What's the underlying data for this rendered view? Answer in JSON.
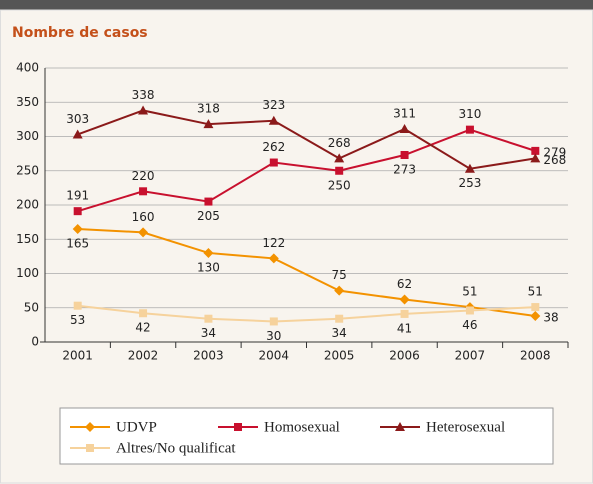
{
  "chart_data": {
    "type": "line",
    "title": "Nombre de casos",
    "categories": [
      "2001",
      "2002",
      "2003",
      "2004",
      "2005",
      "2006",
      "2007",
      "2008"
    ],
    "series": [
      {
        "name": "UDVP",
        "color": "#f39200",
        "marker": "diamond",
        "values": [
          165,
          160,
          130,
          122,
          75,
          62,
          51,
          38
        ]
      },
      {
        "name": "Homosexual",
        "color": "#c8102e",
        "marker": "square",
        "values": [
          191,
          220,
          205,
          262,
          250,
          273,
          310,
          279
        ]
      },
      {
        "name": "Heterosexual",
        "color": "#8b1a1a",
        "marker": "triangle",
        "values": [
          303,
          338,
          318,
          323,
          268,
          311,
          253,
          268
        ]
      },
      {
        "name": "Altres/No qualificat",
        "color": "#f6d29c",
        "marker": "square",
        "values": [
          53,
          42,
          34,
          30,
          34,
          41,
          46,
          51
        ]
      }
    ],
    "ylim": [
      0,
      400
    ],
    "yticks": [
      0,
      50,
      100,
      150,
      200,
      250,
      300,
      350,
      400
    ],
    "grid": true
  }
}
